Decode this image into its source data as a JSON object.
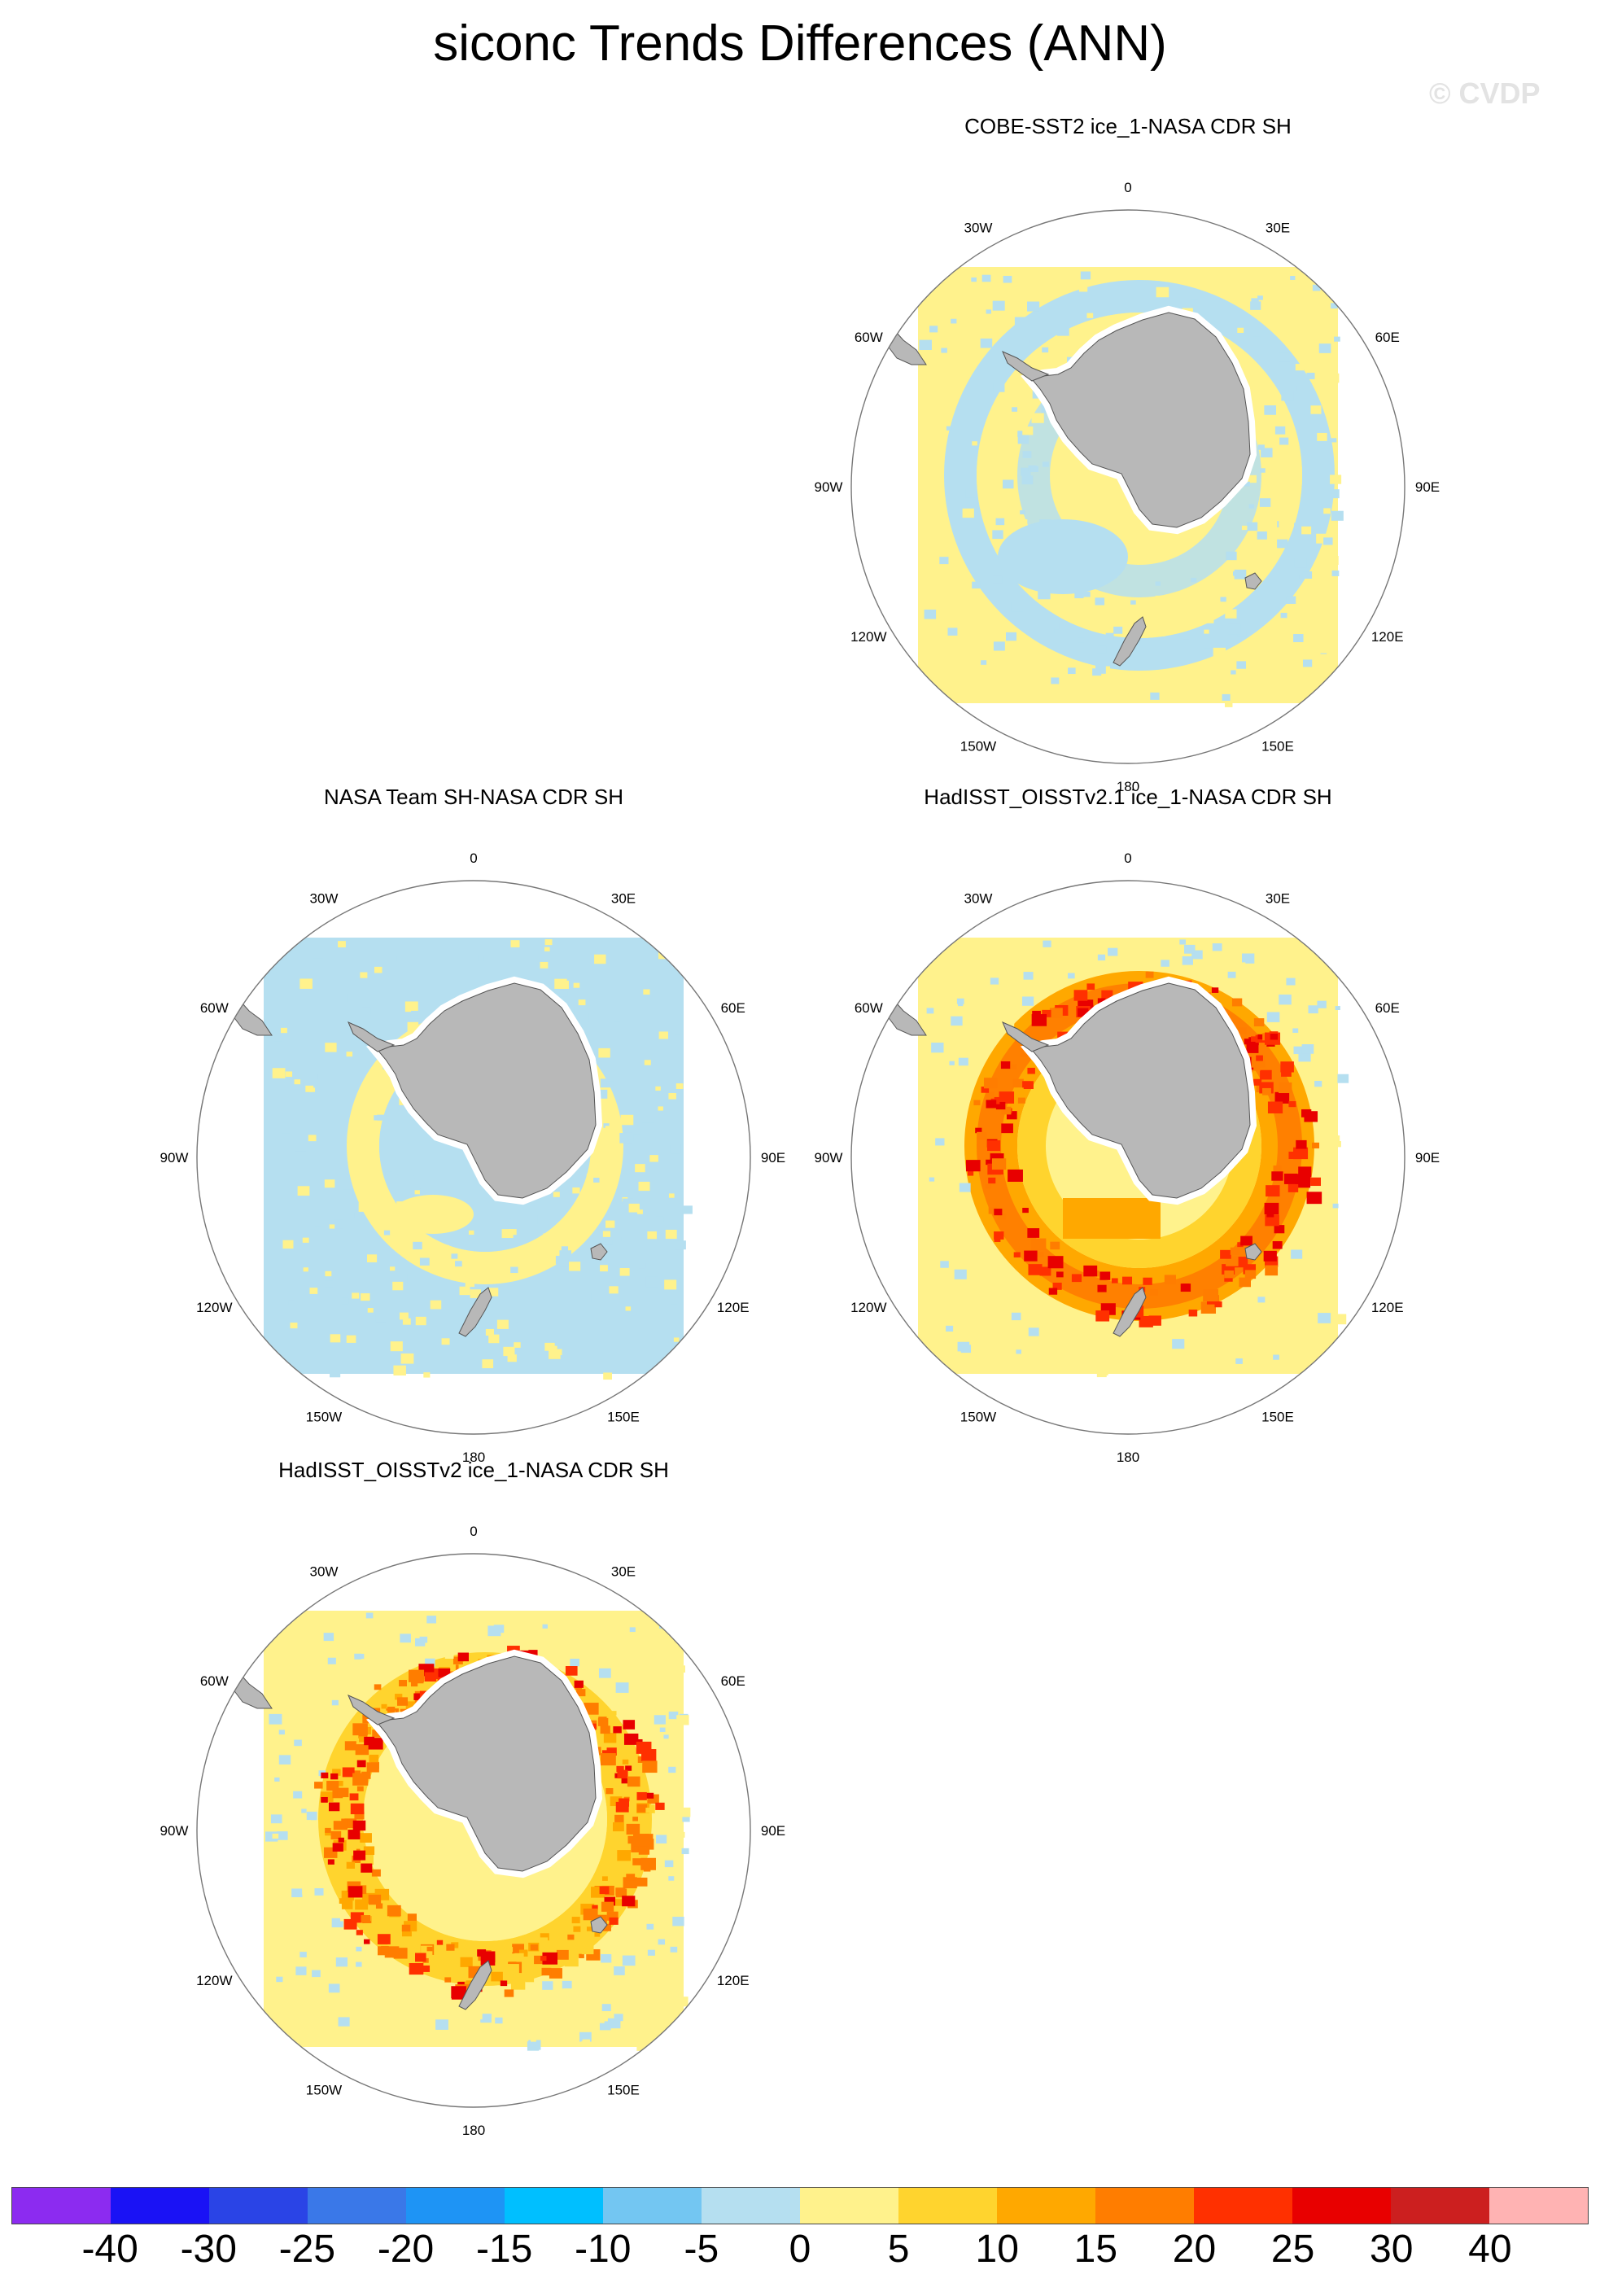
{
  "title": "siconc Trends Differences (ANN)",
  "watermark": "© CVDP",
  "lon_labels": [
    "0",
    "30E",
    "60E",
    "90E",
    "120E",
    "150E",
    "180",
    "150W",
    "120W",
    "90W",
    "60W",
    "30W"
  ],
  "panels": [
    {
      "title": "COBE-SST2 ice_1-NASA CDR SH",
      "pattern": "mostly small differences (-5 to 5) with near-zero light blue rings"
    },
    {
      "title": "NASA Team SH-NASA CDR SH",
      "pattern": "mostly slightly negative (-5 to 0) with positive near-coast ring"
    },
    {
      "title": "HadISST_OISSTv2.1 ice_1-NASA CDR SH",
      "pattern": "strong positive ring (10 to 30) around sea-ice edge"
    },
    {
      "title": "HadISST_OISSTv2 ice_1-NASA CDR SH",
      "pattern": "moderate positive ring (5 to 25) around sea-ice edge"
    }
  ],
  "colorbar": {
    "colors": [
      "#8c2bf0",
      "#1a12f5",
      "#2a44e6",
      "#3a78e8",
      "#1e94f5",
      "#00bfff",
      "#73c6f2",
      "#b5dff0",
      "#fff28c",
      "#ffd42e",
      "#ffa800",
      "#ff7d00",
      "#ff3000",
      "#e80000",
      "#cc1f1f",
      "#ffb3b3"
    ],
    "labels": [
      "-40",
      "-30",
      "-25",
      "-20",
      "-15",
      "-10",
      "-5",
      "0",
      "5",
      "10",
      "15",
      "20",
      "25",
      "30",
      "40"
    ]
  }
}
